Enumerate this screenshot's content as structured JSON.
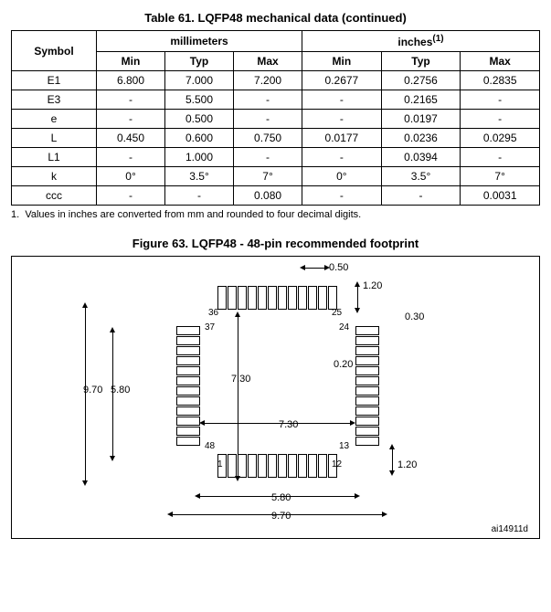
{
  "table": {
    "title": "Table 61. LQFP48 mechanical data (continued)",
    "header": {
      "symbol": "Symbol",
      "mm": "millimeters",
      "inches": "inches",
      "inches_note": "(1)",
      "min": "Min",
      "typ": "Typ",
      "max": "Max"
    },
    "rows": [
      {
        "sym": "E1",
        "mmMin": "6.800",
        "mmTyp": "7.000",
        "mmMax": "7.200",
        "inMin": "0.2677",
        "inTyp": "0.2756",
        "inMax": "0.2835"
      },
      {
        "sym": "E3",
        "mmMin": "-",
        "mmTyp": "5.500",
        "mmMax": "-",
        "inMin": "-",
        "inTyp": "0.2165",
        "inMax": "-"
      },
      {
        "sym": "e",
        "mmMin": "-",
        "mmTyp": "0.500",
        "mmMax": "-",
        "inMin": "-",
        "inTyp": "0.0197",
        "inMax": "-"
      },
      {
        "sym": "L",
        "mmMin": "0.450",
        "mmTyp": "0.600",
        "mmMax": "0.750",
        "inMin": "0.0177",
        "inTyp": "0.0236",
        "inMax": "0.0295"
      },
      {
        "sym": "L1",
        "mmMin": "-",
        "mmTyp": "1.000",
        "mmMax": "-",
        "inMin": "-",
        "inTyp": "0.0394",
        "inMax": "-"
      },
      {
        "sym": "k",
        "mmMin": "0°",
        "mmTyp": "3.5°",
        "mmMax": "7°",
        "inMin": "0°",
        "inTyp": "3.5°",
        "inMax": "7°"
      },
      {
        "sym": "ccc",
        "mmMin": "-",
        "mmTyp": "-",
        "mmMax": "0.080",
        "inMin": "-",
        "inTyp": "-",
        "inMax": "0.0031"
      }
    ],
    "footnote_num": "1.",
    "footnote": "Values in inches are converted from mm and rounded to four decimal digits."
  },
  "figure": {
    "title": "Figure 63. LQFP48 - 48-pin recommended footprint",
    "dims": {
      "pitch": "0.50",
      "pad_len_top": "1.20",
      "pad_width": "0.30",
      "pad_gap": "0.20",
      "body_a": "7.30",
      "body_b": "7.30",
      "row_span": "5.80",
      "overall": "9.70",
      "pad_len_bot": "1.20",
      "row_span2": "5.80",
      "overall2": "9.70"
    },
    "pins": {
      "p36": "36",
      "p37": "37",
      "p48": "48",
      "p1": "1",
      "p25": "25",
      "p24": "24",
      "p13": "13",
      "p12": "12"
    },
    "docref": "ai14911d"
  }
}
